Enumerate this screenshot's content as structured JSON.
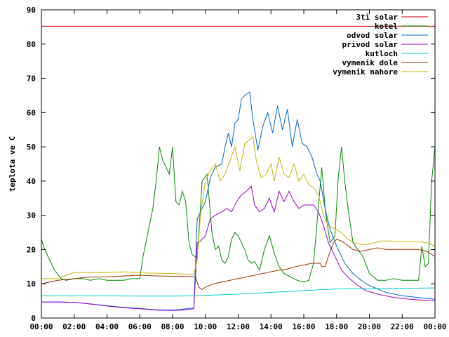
{
  "chart_data": {
    "type": "line",
    "ylabel": "teplota ve C",
    "xlabel": "",
    "title": "",
    "xlim": [
      0,
      24
    ],
    "ylim": [
      0,
      90
    ],
    "grid": false,
    "legend_position": "top-right",
    "x_ticks": [
      "00:00",
      "02:00",
      "04:00",
      "06:00",
      "08:00",
      "10:00",
      "12:00",
      "14:00",
      "16:00",
      "18:00",
      "20:00",
      "22:00",
      "00:00"
    ],
    "y_ticks": [
      0,
      10,
      20,
      30,
      40,
      50,
      60,
      70,
      80,
      90
    ],
    "series": [
      {
        "name": "3ti solar",
        "color": "#c00000",
        "points": [
          [
            0,
            85.2
          ],
          [
            24,
            85.2
          ]
        ]
      },
      {
        "name": "kotel",
        "color": "#008a00",
        "points": [
          [
            0,
            23
          ],
          [
            0.2,
            20
          ],
          [
            0.5,
            17
          ],
          [
            0.8,
            14
          ],
          [
            1.2,
            11.5
          ],
          [
            1.5,
            11
          ],
          [
            2,
            11.5
          ],
          [
            2.5,
            11.5
          ],
          [
            3,
            11
          ],
          [
            3.5,
            11.5
          ],
          [
            4,
            11
          ],
          [
            4.5,
            11
          ],
          [
            5,
            11
          ],
          [
            5.5,
            11.5
          ],
          [
            6,
            11.5
          ],
          [
            6.2,
            18
          ],
          [
            6.5,
            25
          ],
          [
            6.8,
            32
          ],
          [
            7,
            40
          ],
          [
            7.2,
            50
          ],
          [
            7.4,
            46
          ],
          [
            7.6,
            44
          ],
          [
            7.8,
            42
          ],
          [
            8,
            50
          ],
          [
            8.2,
            34
          ],
          [
            8.4,
            33
          ],
          [
            8.6,
            37
          ],
          [
            8.8,
            34
          ],
          [
            9,
            22
          ],
          [
            9.2,
            18.5
          ],
          [
            9.5,
            17.5
          ],
          [
            9.8,
            40
          ],
          [
            10.1,
            42
          ],
          [
            10.4,
            25
          ],
          [
            10.6,
            20
          ],
          [
            10.8,
            21
          ],
          [
            11,
            17
          ],
          [
            11.2,
            16
          ],
          [
            11.4,
            18
          ],
          [
            11.6,
            23
          ],
          [
            11.8,
            25
          ],
          [
            12,
            24
          ],
          [
            12.2,
            22
          ],
          [
            12.4,
            20
          ],
          [
            12.6,
            17
          ],
          [
            12.8,
            16
          ],
          [
            13,
            16.5
          ],
          [
            13.3,
            14
          ],
          [
            13.6,
            20
          ],
          [
            13.9,
            24
          ],
          [
            14.2,
            19
          ],
          [
            14.5,
            15
          ],
          [
            14.8,
            13
          ],
          [
            15.2,
            12
          ],
          [
            15.6,
            11
          ],
          [
            16,
            10.5
          ],
          [
            16.3,
            11
          ],
          [
            16.6,
            16
          ],
          [
            16.9,
            33
          ],
          [
            17.1,
            44
          ],
          [
            17.3,
            32
          ],
          [
            17.6,
            22
          ],
          [
            17.9,
            24
          ],
          [
            18.1,
            41
          ],
          [
            18.3,
            50
          ],
          [
            18.5,
            40
          ],
          [
            18.7,
            32
          ],
          [
            19,
            22
          ],
          [
            19.3,
            20
          ],
          [
            19.6,
            18
          ],
          [
            20,
            13
          ],
          [
            20.5,
            11
          ],
          [
            21,
            11
          ],
          [
            21.5,
            11.5
          ],
          [
            22,
            11
          ],
          [
            22.5,
            11
          ],
          [
            23,
            11
          ],
          [
            23.2,
            21
          ],
          [
            23.4,
            15
          ],
          [
            23.6,
            16
          ],
          [
            23.8,
            40
          ],
          [
            24,
            50
          ]
        ]
      },
      {
        "name": "odvod solar",
        "color": "#0066cc",
        "points": [
          [
            0,
            4.7
          ],
          [
            1,
            4.7
          ],
          [
            2,
            4.6
          ],
          [
            3,
            4.1
          ],
          [
            4,
            3.6
          ],
          [
            5,
            3.1
          ],
          [
            6,
            2.8
          ],
          [
            7,
            2.4
          ],
          [
            8,
            2.3
          ],
          [
            8.5,
            2.5
          ],
          [
            9,
            2.8
          ],
          [
            9.3,
            3
          ],
          [
            9.5,
            29
          ],
          [
            9.7,
            31
          ],
          [
            10,
            34
          ],
          [
            10.3,
            41
          ],
          [
            10.6,
            44
          ],
          [
            11,
            45
          ],
          [
            11.2,
            50
          ],
          [
            11.4,
            54
          ],
          [
            11.6,
            50
          ],
          [
            11.8,
            57
          ],
          [
            12,
            58
          ],
          [
            12.2,
            64
          ],
          [
            12.4,
            65
          ],
          [
            12.7,
            66
          ],
          [
            12.9,
            58
          ],
          [
            13.2,
            49
          ],
          [
            13.5,
            56
          ],
          [
            13.8,
            60
          ],
          [
            14.1,
            54
          ],
          [
            14.4,
            62
          ],
          [
            14.7,
            55
          ],
          [
            15,
            61
          ],
          [
            15.3,
            50
          ],
          [
            15.6,
            58
          ],
          [
            15.9,
            51
          ],
          [
            16.2,
            50
          ],
          [
            16.5,
            47
          ],
          [
            16.8,
            42
          ],
          [
            17,
            40
          ],
          [
            17.3,
            32
          ],
          [
            17.6,
            26
          ],
          [
            18,
            21
          ],
          [
            18.5,
            16
          ],
          [
            19,
            13
          ],
          [
            19.5,
            11
          ],
          [
            20,
            9.5
          ],
          [
            20.5,
            8.5
          ],
          [
            21,
            7.5
          ],
          [
            22,
            6.5
          ],
          [
            23,
            6
          ],
          [
            24,
            5.5
          ]
        ]
      },
      {
        "name": "privod solar",
        "color": "#9900cc",
        "points": [
          [
            0,
            4.7
          ],
          [
            1,
            4.7
          ],
          [
            2,
            4.6
          ],
          [
            3,
            4.1
          ],
          [
            4,
            3.5
          ],
          [
            5,
            3
          ],
          [
            6,
            2.7
          ],
          [
            7,
            2.3
          ],
          [
            8,
            2.2
          ],
          [
            8.5,
            2.3
          ],
          [
            9,
            2.5
          ],
          [
            9.3,
            2.7
          ],
          [
            9.5,
            22
          ],
          [
            9.7,
            22.5
          ],
          [
            10,
            24
          ],
          [
            10.3,
            29
          ],
          [
            10.6,
            30
          ],
          [
            11,
            31
          ],
          [
            11.3,
            32
          ],
          [
            11.6,
            31
          ],
          [
            11.9,
            34
          ],
          [
            12.2,
            36
          ],
          [
            12.5,
            37
          ],
          [
            12.8,
            38.5
          ],
          [
            13,
            33
          ],
          [
            13.3,
            31
          ],
          [
            13.6,
            32
          ],
          [
            13.9,
            35
          ],
          [
            14.2,
            31
          ],
          [
            14.5,
            37
          ],
          [
            14.8,
            34
          ],
          [
            15.1,
            37
          ],
          [
            15.4,
            34
          ],
          [
            15.7,
            32
          ],
          [
            16,
            33
          ],
          [
            16.3,
            33
          ],
          [
            16.6,
            33
          ],
          [
            16.9,
            31
          ],
          [
            17.2,
            27
          ],
          [
            17.5,
            22
          ],
          [
            17.9,
            18
          ],
          [
            18.3,
            14
          ],
          [
            18.8,
            11.5
          ],
          [
            19.3,
            9.5
          ],
          [
            19.8,
            8
          ],
          [
            20.5,
            7
          ],
          [
            21.5,
            6
          ],
          [
            22.5,
            5.5
          ],
          [
            24,
            5
          ]
        ]
      },
      {
        "name": "kutloch",
        "color": "#00cccc",
        "points": [
          [
            0,
            6.5
          ],
          [
            2,
            6.5
          ],
          [
            4,
            6.5
          ],
          [
            6,
            6.4
          ],
          [
            8,
            6.4
          ],
          [
            10,
            6.6
          ],
          [
            12,
            7
          ],
          [
            14,
            7.5
          ],
          [
            16,
            8
          ],
          [
            18,
            8.5
          ],
          [
            20,
            8.6
          ],
          [
            22,
            8.7
          ],
          [
            24,
            8.8
          ]
        ]
      },
      {
        "name": "vymenik dole",
        "color": "#993300",
        "points": [
          [
            0,
            10
          ],
          [
            0.5,
            10.5
          ],
          [
            1,
            11
          ],
          [
            2,
            11.5
          ],
          [
            3,
            12
          ],
          [
            4,
            12
          ],
          [
            5,
            12.3
          ],
          [
            6,
            12.5
          ],
          [
            7,
            12.3
          ],
          [
            8,
            12.2
          ],
          [
            9,
            12.1
          ],
          [
            9.4,
            12
          ],
          [
            9.6,
            9
          ],
          [
            9.8,
            8.3
          ],
          [
            10,
            9
          ],
          [
            10.5,
            10
          ],
          [
            11,
            10.5
          ],
          [
            11.5,
            11
          ],
          [
            12,
            11.5
          ],
          [
            12.5,
            12
          ],
          [
            13,
            12.5
          ],
          [
            13.5,
            13
          ],
          [
            14,
            13.5
          ],
          [
            14.5,
            14
          ],
          [
            15,
            14.3
          ],
          [
            15.5,
            15
          ],
          [
            16,
            15.5
          ],
          [
            16.5,
            16
          ],
          [
            17,
            16
          ],
          [
            17.1,
            15
          ],
          [
            17.3,
            15
          ],
          [
            17.5,
            18
          ],
          [
            17.8,
            22
          ],
          [
            18,
            23
          ],
          [
            18.3,
            22.5
          ],
          [
            18.6,
            21.5
          ],
          [
            19,
            20
          ],
          [
            19.5,
            19.5
          ],
          [
            20,
            20
          ],
          [
            20.5,
            20.5
          ],
          [
            21,
            20
          ],
          [
            22,
            20
          ],
          [
            23,
            20
          ],
          [
            23.5,
            19.5
          ],
          [
            24,
            18
          ]
        ]
      },
      {
        "name": "vymenik nahore",
        "color": "#c8b400",
        "points": [
          [
            0,
            11.5
          ],
          [
            0.5,
            11.5
          ],
          [
            1,
            11.5
          ],
          [
            1.5,
            12.5
          ],
          [
            2,
            13.3
          ],
          [
            3,
            13.3
          ],
          [
            4,
            13.3
          ],
          [
            5,
            13.5
          ],
          [
            6,
            13.2
          ],
          [
            7,
            13.1
          ],
          [
            8,
            13
          ],
          [
            9,
            12.8
          ],
          [
            9.3,
            12.8
          ],
          [
            9.5,
            17
          ],
          [
            9.7,
            30
          ],
          [
            10,
            40
          ],
          [
            10.3,
            43
          ],
          [
            10.6,
            45
          ],
          [
            10.9,
            40
          ],
          [
            11.2,
            42
          ],
          [
            11.5,
            46
          ],
          [
            11.8,
            50
          ],
          [
            12.1,
            43
          ],
          [
            12.4,
            51
          ],
          [
            12.7,
            52
          ],
          [
            12.9,
            53
          ],
          [
            13.1,
            46
          ],
          [
            13.4,
            41
          ],
          [
            13.7,
            42
          ],
          [
            14,
            45
          ],
          [
            14.2,
            40
          ],
          [
            14.5,
            47
          ],
          [
            14.8,
            42
          ],
          [
            15.1,
            41
          ],
          [
            15.4,
            45
          ],
          [
            15.7,
            40
          ],
          [
            16,
            42
          ],
          [
            16.3,
            39
          ],
          [
            16.6,
            38
          ],
          [
            16.9,
            36
          ],
          [
            17.2,
            30
          ],
          [
            17.5,
            27
          ],
          [
            17.9,
            26
          ],
          [
            18.3,
            25
          ],
          [
            18.7,
            23
          ],
          [
            19.1,
            22
          ],
          [
            19.5,
            21.5
          ],
          [
            19.9,
            21.5
          ],
          [
            20.3,
            22
          ],
          [
            20.7,
            22.5
          ],
          [
            21.2,
            22.5
          ],
          [
            22,
            22.3
          ],
          [
            23,
            22.3
          ],
          [
            23.5,
            22
          ],
          [
            24,
            21
          ]
        ]
      }
    ]
  }
}
